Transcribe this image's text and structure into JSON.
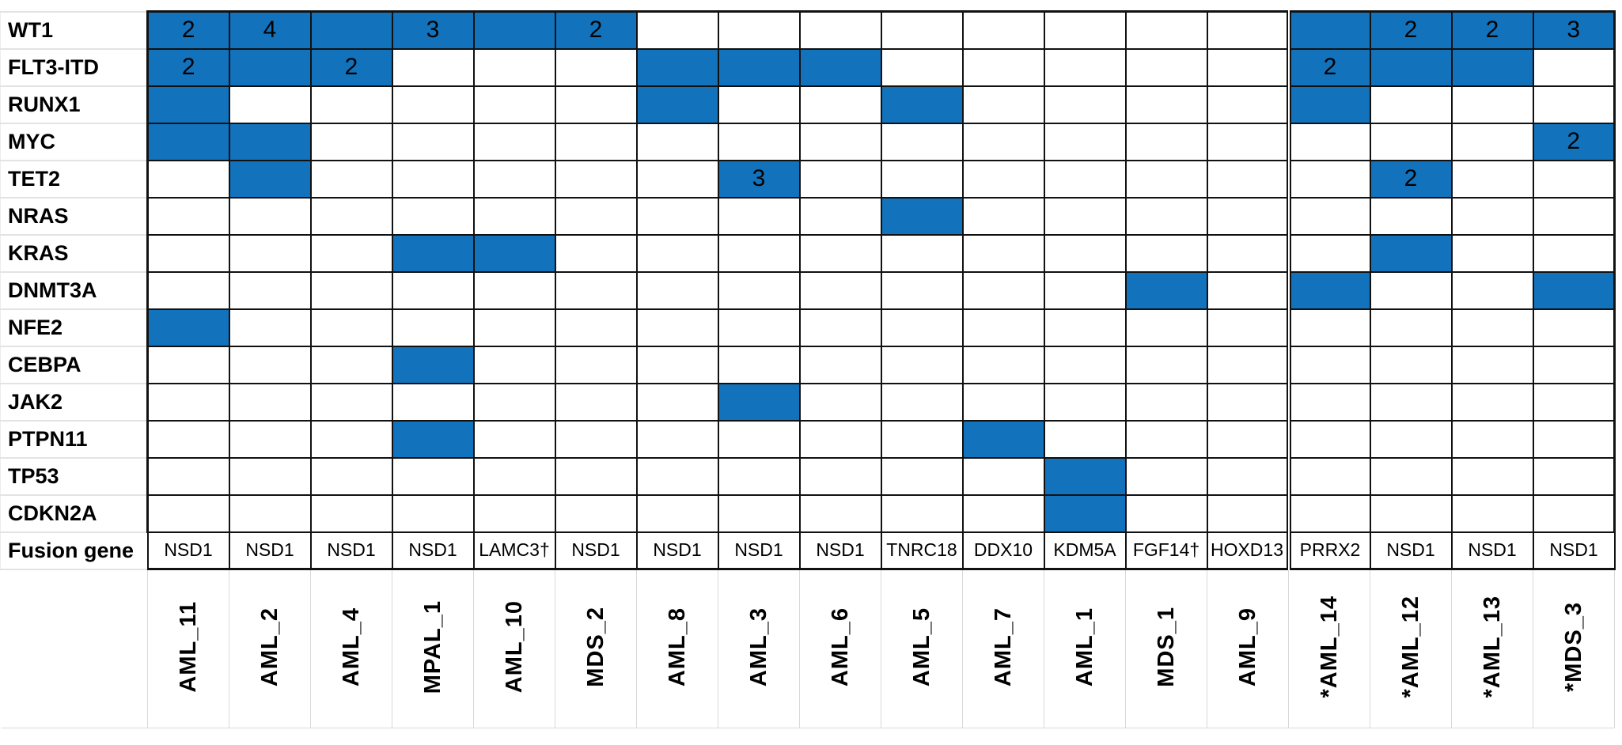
{
  "colors": {
    "filled_cell": "#1272BC",
    "grid_line": "#111111",
    "label_separator": "#D9D9D9",
    "text": "#000000",
    "background": "#FFFFFF"
  },
  "chart_data": {
    "type": "heatmap",
    "title": "",
    "rows": [
      "WT1",
      "FLT3-ITD",
      "RUNX1",
      "MYC",
      "TET2",
      "NRAS",
      "KRAS",
      "DNMT3A",
      "NFE2",
      "CEBPA",
      "JAK2",
      "PTPN11",
      "TP53",
      "CDKN2A"
    ],
    "columns": [
      "AML_11",
      "AML_2",
      "AML_4",
      "MPAL_1",
      "AML_10",
      "MDS_2",
      "AML_8",
      "AML_3",
      "AML_6",
      "AML_5",
      "AML_7",
      "AML_1",
      "MDS_1",
      "AML_9",
      "*AML_14",
      "*AML_12",
      "*AML_13",
      "*MDS_3"
    ],
    "fusion_row": {
      "label": "Fusion gene",
      "values": [
        "NSD1",
        "NSD1",
        "NSD1",
        "NSD1",
        "LAMC3†",
        "NSD1",
        "NSD1",
        "NSD1",
        "NSD1",
        "TNRC18",
        "DDX10",
        "KDM5A",
        "FGF14†",
        "HOXD13",
        "PRRX2",
        "NSD1",
        "NSD1",
        "NSD1"
      ]
    },
    "value_encoding": "null = no alteration (white cell); \"\" = alteration present (blue cell, no count); \"N\" = N alterations (blue cell with printed count)",
    "double_line_before_column": "*AML_14",
    "cells": [
      [
        "2",
        "4",
        "",
        "3",
        "",
        "2",
        null,
        null,
        null,
        null,
        null,
        null,
        null,
        null,
        "",
        "2",
        "2",
        "3"
      ],
      [
        "2",
        "",
        "2",
        null,
        null,
        null,
        "",
        "",
        "",
        null,
        null,
        null,
        null,
        null,
        "2",
        "",
        "",
        null
      ],
      [
        "",
        null,
        null,
        null,
        null,
        null,
        "",
        null,
        null,
        "",
        null,
        null,
        null,
        null,
        "",
        null,
        null,
        null
      ],
      [
        "",
        "",
        null,
        null,
        null,
        null,
        null,
        null,
        null,
        null,
        null,
        null,
        null,
        null,
        null,
        null,
        null,
        "2"
      ],
      [
        null,
        "",
        null,
        null,
        null,
        null,
        null,
        "3",
        null,
        null,
        null,
        null,
        null,
        null,
        null,
        "2",
        null,
        null
      ],
      [
        null,
        null,
        null,
        null,
        null,
        null,
        null,
        null,
        null,
        "",
        null,
        null,
        null,
        null,
        null,
        null,
        null,
        null
      ],
      [
        null,
        null,
        null,
        "",
        "",
        null,
        null,
        null,
        null,
        null,
        null,
        null,
        null,
        null,
        null,
        "",
        null,
        null
      ],
      [
        null,
        null,
        null,
        null,
        null,
        null,
        null,
        null,
        null,
        null,
        null,
        null,
        "",
        null,
        "",
        null,
        null,
        ""
      ],
      [
        "",
        null,
        null,
        null,
        null,
        null,
        null,
        null,
        null,
        null,
        null,
        null,
        null,
        null,
        null,
        null,
        null,
        null
      ],
      [
        null,
        null,
        null,
        "",
        null,
        null,
        null,
        null,
        null,
        null,
        null,
        null,
        null,
        null,
        null,
        null,
        null,
        null
      ],
      [
        null,
        null,
        null,
        null,
        null,
        null,
        null,
        "",
        null,
        null,
        null,
        null,
        null,
        null,
        null,
        null,
        null,
        null
      ],
      [
        null,
        null,
        null,
        "",
        null,
        null,
        null,
        null,
        null,
        null,
        "",
        null,
        null,
        null,
        null,
        null,
        null,
        null
      ],
      [
        null,
        null,
        null,
        null,
        null,
        null,
        null,
        null,
        null,
        null,
        null,
        "",
        null,
        null,
        null,
        null,
        null,
        null
      ],
      [
        null,
        null,
        null,
        null,
        null,
        null,
        null,
        null,
        null,
        null,
        null,
        "",
        null,
        null,
        null,
        null,
        null,
        null
      ]
    ]
  }
}
